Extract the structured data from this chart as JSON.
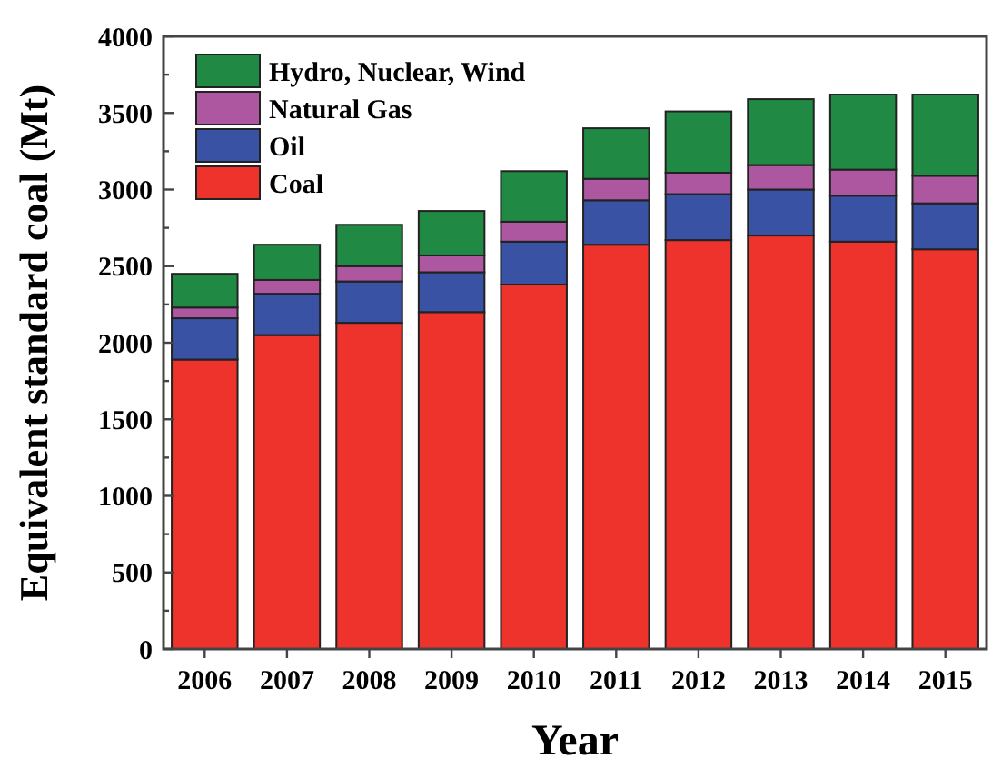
{
  "chart_data": {
    "type": "bar",
    "stacked": true,
    "xlabel": "Year",
    "ylabel": "Equivalent standard coal (Mt)",
    "categories": [
      "2006",
      "2007",
      "2008",
      "2009",
      "2010",
      "2011",
      "2012",
      "2013",
      "2014",
      "2015"
    ],
    "series": [
      {
        "name": "Coal",
        "color": "#ee322c",
        "values": [
          1890,
          2050,
          2130,
          2200,
          2380,
          2640,
          2670,
          2700,
          2660,
          2610
        ]
      },
      {
        "name": "Oil",
        "color": "#3a52a4",
        "values": [
          270,
          270,
          270,
          260,
          280,
          290,
          300,
          300,
          300,
          300
        ]
      },
      {
        "name": "Natural Gas",
        "color": "#ac579f",
        "values": [
          70,
          90,
          100,
          110,
          130,
          140,
          140,
          160,
          170,
          180
        ]
      },
      {
        "name": "Hydro, Nuclear, Wind",
        "color": "#208a45",
        "values": [
          220,
          230,
          270,
          290,
          330,
          330,
          400,
          430,
          490,
          530
        ]
      }
    ],
    "ylim": [
      0,
      4000
    ],
    "yticks": [
      0,
      {
        "value": 250,
        "label": null
      },
      500,
      {
        "value": 750,
        "label": null
      },
      1000,
      {
        "value": 1250,
        "label": null
      },
      1500,
      {
        "value": 1750,
        "label": null
      },
      2000,
      {
        "value": 2250,
        "label": null
      },
      2500,
      {
        "value": 2750,
        "label": null
      },
      3000,
      {
        "value": 3250,
        "label": null
      },
      3500,
      {
        "value": 3750,
        "label": null
      },
      4000
    ],
    "grid": false,
    "legend": "top left"
  }
}
